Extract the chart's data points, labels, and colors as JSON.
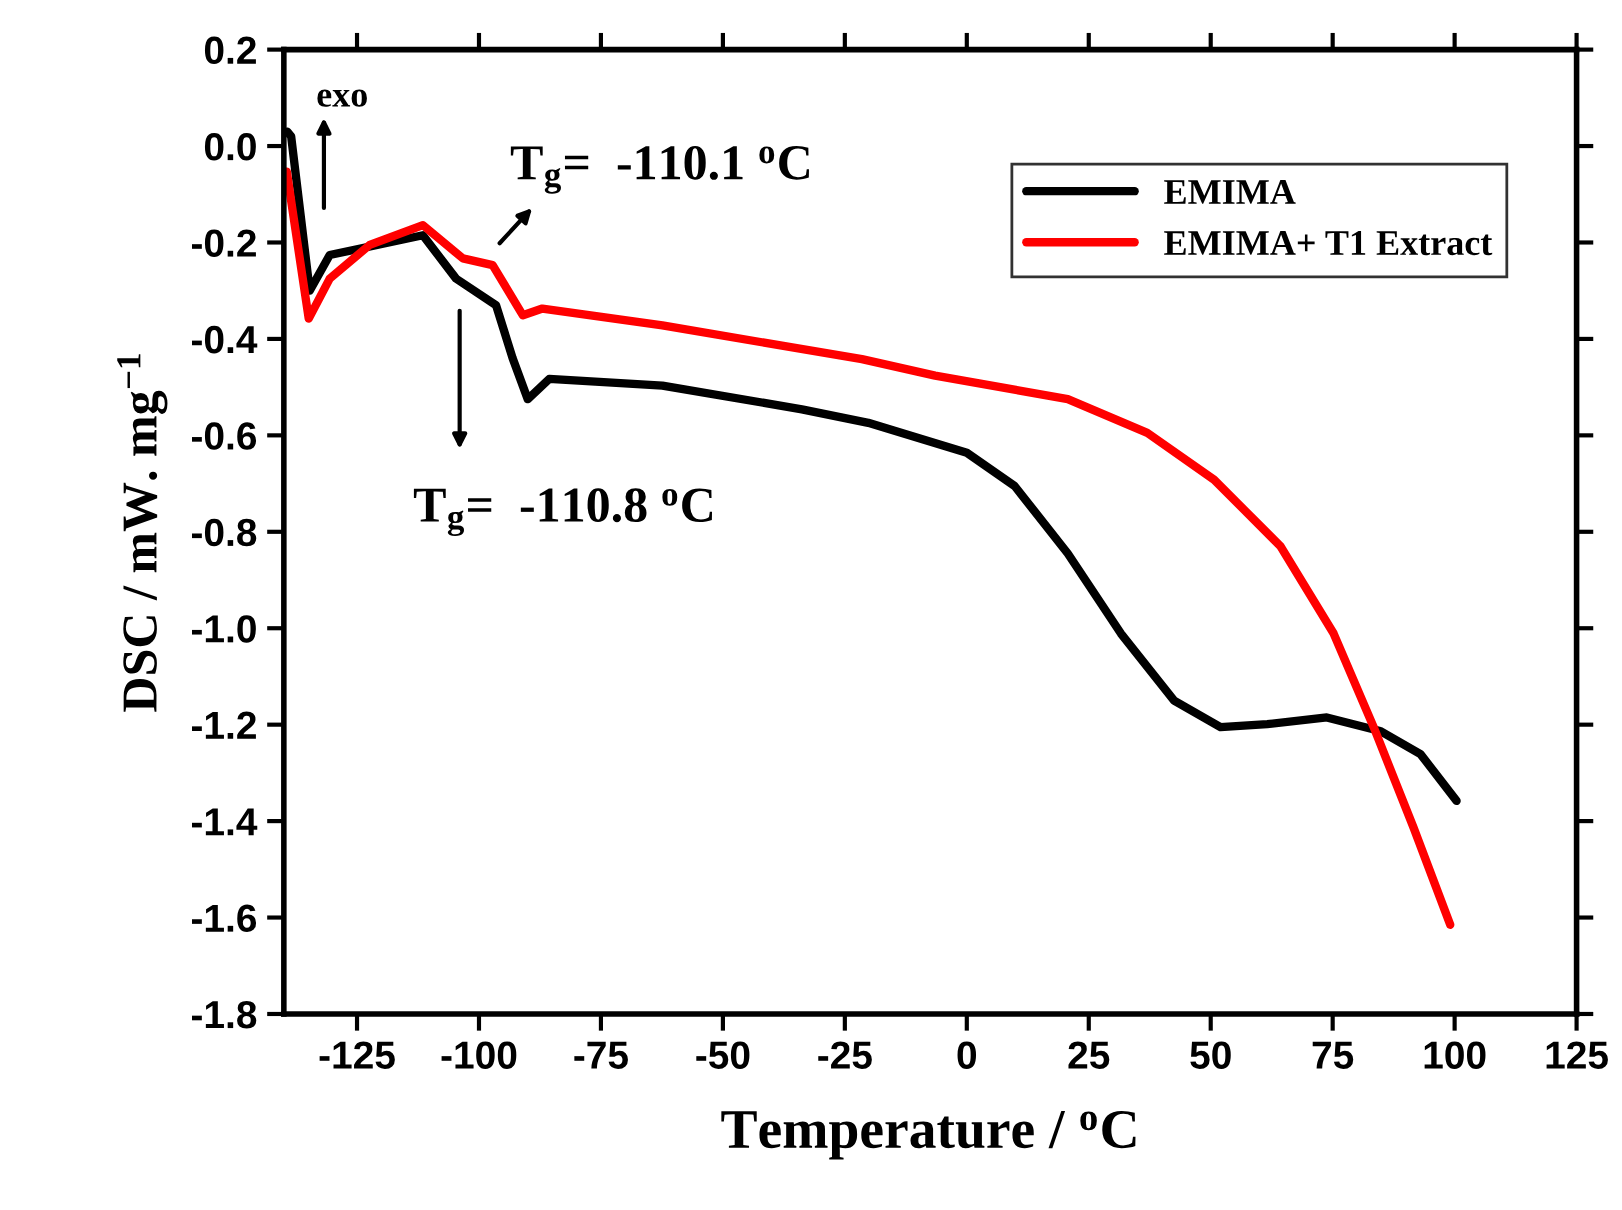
{
  "chart_data": {
    "type": "line",
    "xlabel": "Temperature / $^{o}$C",
    "ylabel": "DSC / mW. mg$^{−1}$",
    "xlim": [
      -140,
      125
    ],
    "xticks": [
      -125,
      -100,
      -75,
      -50,
      -25,
      0,
      25,
      50,
      75,
      100,
      125
    ],
    "ylim": [
      -1.8,
      0.2
    ],
    "yticks": [
      {
        "value": 0.2,
        "label": "0.2"
      },
      {
        "value": 0.0,
        "label": "0.0"
      },
      {
        "value": -0.2,
        "label": "-0.2"
      },
      {
        "value": -0.4,
        "label": "-0.4"
      },
      {
        "value": -0.6,
        "label": "-0.6"
      },
      {
        "value": -0.8,
        "label": "-0.8"
      },
      {
        "value": -1.0,
        "label": "-1.0"
      },
      {
        "value": -1.2,
        "label": "-1.2"
      },
      {
        "value": -1.4,
        "label": "-1.4"
      },
      {
        "value": -1.6,
        "label": "-1.6"
      },
      {
        "value": -1.8,
        "label": "-1.8"
      }
    ],
    "grid": false,
    "legend": "top right",
    "marker": "none",
    "line_style": "solid",
    "series": [
      {
        "name": "EMIMA",
        "color": "#000000",
        "x": [
          -139.3,
          -138.5,
          -134.7,
          -130.6,
          -111.5,
          -104.7,
          -96.5,
          -93.1,
          -90,
          -85.6,
          -62.4,
          -33.8,
          -20.2,
          0,
          9.8,
          20.7,
          31.6,
          42.5,
          52,
          61.6,
          73.8,
          84.7,
          93,
          100.4
        ],
        "values": [
          0.03,
          0.02,
          -0.3,
          -0.226,
          -0.185,
          -0.275,
          -0.33,
          -0.44,
          -0.525,
          -0.483,
          -0.497,
          -0.546,
          -0.574,
          -0.636,
          -0.705,
          -0.845,
          -1.011,
          -1.15,
          -1.205,
          -1.199,
          -1.185,
          -1.213,
          -1.261,
          -1.358
        ]
      },
      {
        "name": "EMIMA+ T1 Extract",
        "color": "#ff0000",
        "x": [
          -139.4,
          -134.9,
          -130.6,
          -122.4,
          -111.5,
          -103.3,
          -97.2,
          -91,
          -87,
          -62.4,
          -37.9,
          -21.5,
          -6.5,
          20.7,
          37,
          50.7,
          64.3,
          75.2,
          83.4,
          91.6,
          99.1
        ],
        "values": [
          -0.053,
          -0.358,
          -0.275,
          -0.205,
          -0.164,
          -0.233,
          -0.247,
          -0.351,
          -0.337,
          -0.372,
          -0.414,
          -0.442,
          -0.476,
          -0.525,
          -0.595,
          -0.692,
          -0.83,
          -1.011,
          -1.205,
          -1.414,
          -1.615
        ]
      }
    ],
    "annotations": [
      "exo",
      "T$_{g}$=  -110.1 $^{o}$C",
      "T$_{g}$=  -110.8 $^{o}$C"
    ]
  }
}
